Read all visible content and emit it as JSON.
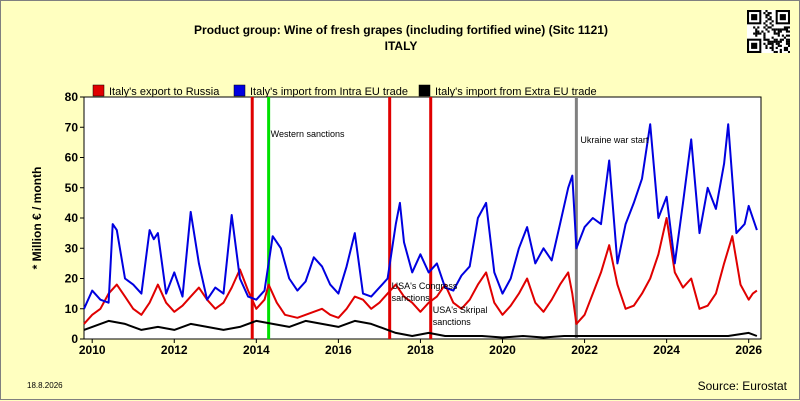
{
  "header": {
    "title": "Product group: Wine of fresh grapes (including fortified wine) (Sitc 1121)",
    "subtitle": "ITALY"
  },
  "footer": {
    "date": "18.8.2026",
    "source": "Source: Eurostat"
  },
  "colors": {
    "background": "#ffffc0",
    "plot_background": "#ffffff",
    "export_russia": "#e00000",
    "import_intra_eu": "#0000e0",
    "import_extra_eu": "#000000",
    "western_sanctions": "#00e000",
    "sanction_marker": "#e00000",
    "ukraine_war": "#808080"
  },
  "chart_data": {
    "type": "line",
    "ylabel": "* Million € / month",
    "xlabel": "",
    "ylim": [
      0,
      80
    ],
    "xlim": [
      2009.8,
      2026.3
    ],
    "yticks": [
      0,
      10,
      20,
      30,
      40,
      50,
      60,
      70,
      80
    ],
    "xticks": [
      2010,
      2012,
      2014,
      2016,
      2018,
      2020,
      2022,
      2024,
      2026
    ],
    "grid": false,
    "legend_position": "top",
    "series": [
      {
        "name": "Italy's export to Russia",
        "color": "#e00000",
        "points": [
          [
            2009.8,
            5
          ],
          [
            2010.0,
            8
          ],
          [
            2010.2,
            10
          ],
          [
            2010.4,
            15
          ],
          [
            2010.6,
            18
          ],
          [
            2010.8,
            14
          ],
          [
            2011.0,
            10
          ],
          [
            2011.2,
            8
          ],
          [
            2011.4,
            12
          ],
          [
            2011.5,
            15
          ],
          [
            2011.6,
            18
          ],
          [
            2011.8,
            12
          ],
          [
            2012.0,
            9
          ],
          [
            2012.2,
            11
          ],
          [
            2012.4,
            14
          ],
          [
            2012.6,
            17
          ],
          [
            2012.8,
            13
          ],
          [
            2013.0,
            10
          ],
          [
            2013.2,
            12
          ],
          [
            2013.4,
            17
          ],
          [
            2013.6,
            23
          ],
          [
            2013.8,
            16
          ],
          [
            2014.0,
            10
          ],
          [
            2014.2,
            13
          ],
          [
            2014.3,
            18
          ],
          [
            2014.5,
            12
          ],
          [
            2014.7,
            8
          ],
          [
            2015.0,
            7
          ],
          [
            2015.2,
            8
          ],
          [
            2015.4,
            9
          ],
          [
            2015.6,
            10
          ],
          [
            2015.8,
            8
          ],
          [
            2016.0,
            7
          ],
          [
            2016.2,
            10
          ],
          [
            2016.4,
            14
          ],
          [
            2016.6,
            13
          ],
          [
            2016.8,
            10
          ],
          [
            2017.0,
            12
          ],
          [
            2017.2,
            15
          ],
          [
            2017.4,
            18
          ],
          [
            2017.6,
            14
          ],
          [
            2017.8,
            12
          ],
          [
            2018.0,
            9
          ],
          [
            2018.2,
            12
          ],
          [
            2018.4,
            14
          ],
          [
            2018.6,
            18
          ],
          [
            2018.8,
            12
          ],
          [
            2019.0,
            10
          ],
          [
            2019.2,
            13
          ],
          [
            2019.4,
            18
          ],
          [
            2019.6,
            22
          ],
          [
            2019.8,
            12
          ],
          [
            2020.0,
            8
          ],
          [
            2020.2,
            11
          ],
          [
            2020.4,
            15
          ],
          [
            2020.6,
            20
          ],
          [
            2020.8,
            12
          ],
          [
            2021.0,
            9
          ],
          [
            2021.2,
            13
          ],
          [
            2021.4,
            18
          ],
          [
            2021.6,
            22
          ],
          [
            2021.7,
            15
          ],
          [
            2021.8,
            5
          ],
          [
            2022.0,
            8
          ],
          [
            2022.2,
            15
          ],
          [
            2022.4,
            22
          ],
          [
            2022.6,
            31
          ],
          [
            2022.8,
            18
          ],
          [
            2023.0,
            10
          ],
          [
            2023.2,
            11
          ],
          [
            2023.4,
            15
          ],
          [
            2023.6,
            20
          ],
          [
            2023.8,
            28
          ],
          [
            2024.0,
            40
          ],
          [
            2024.2,
            22
          ],
          [
            2024.4,
            17
          ],
          [
            2024.6,
            20
          ],
          [
            2024.8,
            10
          ],
          [
            2025.0,
            11
          ],
          [
            2025.2,
            15
          ],
          [
            2025.4,
            25
          ],
          [
            2025.6,
            34
          ],
          [
            2025.8,
            18
          ],
          [
            2026.0,
            13
          ],
          [
            2026.1,
            15
          ],
          [
            2026.2,
            16
          ]
        ]
      },
      {
        "name": "Italy's import from Intra EU trade",
        "color": "#0000e0",
        "points": [
          [
            2009.8,
            10
          ],
          [
            2010.0,
            16
          ],
          [
            2010.2,
            13
          ],
          [
            2010.4,
            12
          ],
          [
            2010.5,
            38
          ],
          [
            2010.6,
            36
          ],
          [
            2010.8,
            20
          ],
          [
            2011.0,
            18
          ],
          [
            2011.2,
            15
          ],
          [
            2011.4,
            36
          ],
          [
            2011.5,
            33
          ],
          [
            2011.6,
            35
          ],
          [
            2011.8,
            15
          ],
          [
            2012.0,
            22
          ],
          [
            2012.2,
            14
          ],
          [
            2012.4,
            42
          ],
          [
            2012.6,
            25
          ],
          [
            2012.8,
            13
          ],
          [
            2013.0,
            17
          ],
          [
            2013.2,
            15
          ],
          [
            2013.4,
            41
          ],
          [
            2013.6,
            20
          ],
          [
            2013.8,
            14
          ],
          [
            2014.0,
            13
          ],
          [
            2014.2,
            16
          ],
          [
            2014.4,
            34
          ],
          [
            2014.6,
            30
          ],
          [
            2014.8,
            20
          ],
          [
            2015.0,
            16
          ],
          [
            2015.2,
            19
          ],
          [
            2015.4,
            27
          ],
          [
            2015.6,
            24
          ],
          [
            2015.8,
            18
          ],
          [
            2016.0,
            15
          ],
          [
            2016.2,
            24
          ],
          [
            2016.4,
            35
          ],
          [
            2016.6,
            15
          ],
          [
            2016.8,
            14
          ],
          [
            2017.0,
            17
          ],
          [
            2017.2,
            20
          ],
          [
            2017.4,
            38
          ],
          [
            2017.5,
            45
          ],
          [
            2017.6,
            32
          ],
          [
            2017.8,
            22
          ],
          [
            2018.0,
            28
          ],
          [
            2018.2,
            22
          ],
          [
            2018.4,
            25
          ],
          [
            2018.6,
            17
          ],
          [
            2018.8,
            16
          ],
          [
            2019.0,
            21
          ],
          [
            2019.2,
            24
          ],
          [
            2019.4,
            40
          ],
          [
            2019.6,
            45
          ],
          [
            2019.8,
            22
          ],
          [
            2020.0,
            15
          ],
          [
            2020.2,
            20
          ],
          [
            2020.4,
            30
          ],
          [
            2020.6,
            37
          ],
          [
            2020.8,
            25
          ],
          [
            2021.0,
            30
          ],
          [
            2021.2,
            26
          ],
          [
            2021.4,
            38
          ],
          [
            2021.6,
            50
          ],
          [
            2021.7,
            54
          ],
          [
            2021.8,
            30
          ],
          [
            2022.0,
            37
          ],
          [
            2022.2,
            40
          ],
          [
            2022.4,
            38
          ],
          [
            2022.6,
            59
          ],
          [
            2022.8,
            25
          ],
          [
            2023.0,
            38
          ],
          [
            2023.2,
            45
          ],
          [
            2023.4,
            53
          ],
          [
            2023.6,
            71
          ],
          [
            2023.8,
            40
          ],
          [
            2024.0,
            47
          ],
          [
            2024.2,
            25
          ],
          [
            2024.4,
            45
          ],
          [
            2024.6,
            66
          ],
          [
            2024.8,
            35
          ],
          [
            2025.0,
            50
          ],
          [
            2025.2,
            43
          ],
          [
            2025.4,
            58
          ],
          [
            2025.5,
            71
          ],
          [
            2025.7,
            35
          ],
          [
            2025.9,
            38
          ],
          [
            2026.0,
            44
          ],
          [
            2026.2,
            36
          ]
        ]
      },
      {
        "name": "Italy's import from Extra EU trade",
        "color": "#000000",
        "points": [
          [
            2009.8,
            3
          ],
          [
            2010.0,
            4
          ],
          [
            2010.4,
            6
          ],
          [
            2010.8,
            5
          ],
          [
            2011.2,
            3
          ],
          [
            2011.6,
            4
          ],
          [
            2012.0,
            3
          ],
          [
            2012.4,
            5
          ],
          [
            2012.8,
            4
          ],
          [
            2013.2,
            3
          ],
          [
            2013.6,
            4
          ],
          [
            2014.0,
            6
          ],
          [
            2014.4,
            5
          ],
          [
            2014.8,
            4
          ],
          [
            2015.2,
            6
          ],
          [
            2015.6,
            5
          ],
          [
            2016.0,
            4
          ],
          [
            2016.4,
            6
          ],
          [
            2016.8,
            5
          ],
          [
            2017.0,
            4
          ],
          [
            2017.2,
            3
          ],
          [
            2017.4,
            2
          ],
          [
            2017.8,
            1
          ],
          [
            2018.2,
            2
          ],
          [
            2018.6,
            1
          ],
          [
            2019.0,
            1
          ],
          [
            2019.5,
            1
          ],
          [
            2020.0,
            0.5
          ],
          [
            2020.5,
            1
          ],
          [
            2021.0,
            0.5
          ],
          [
            2021.5,
            1
          ],
          [
            2022.0,
            1
          ],
          [
            2022.5,
            1
          ],
          [
            2023.0,
            1
          ],
          [
            2023.5,
            1
          ],
          [
            2024.0,
            1
          ],
          [
            2024.5,
            1
          ],
          [
            2025.0,
            1
          ],
          [
            2025.5,
            1
          ],
          [
            2026.0,
            2
          ],
          [
            2026.2,
            1
          ]
        ]
      }
    ],
    "events": [
      {
        "x": 2013.9,
        "color": "#e00000",
        "label": ""
      },
      {
        "x": 2014.3,
        "color": "#00e000",
        "label": "Western sanctions"
      },
      {
        "x": 2017.25,
        "color": "#e00000",
        "label": "USA's Congress sanctions"
      },
      {
        "x": 2018.25,
        "color": "#e00000",
        "label": "USA's Skripal sanctions"
      },
      {
        "x": 2021.8,
        "color": "#808080",
        "label": "Ukraine war start"
      }
    ]
  }
}
